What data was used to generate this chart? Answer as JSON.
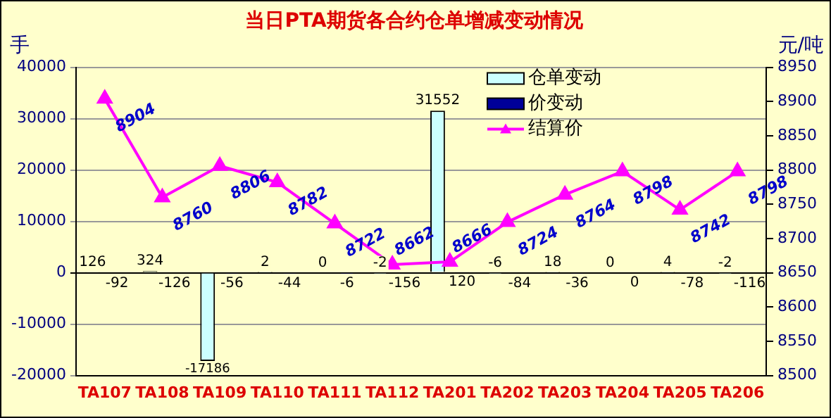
{
  "chart_data": {
    "type": "bar",
    "title": "当日PTA期货各合约仓单增减变动情况",
    "ylabel": "手",
    "y2label": "元/吨",
    "categories": [
      "TA107",
      "TA108",
      "TA109",
      "TA110",
      "TA111",
      "TA112",
      "TA201",
      "TA202",
      "TA203",
      "TA204",
      "TA205",
      "TA206"
    ],
    "series": [
      {
        "name": "仓单变动",
        "color": "#ccffff",
        "values": [
          126,
          324,
          -17186,
          2,
          0,
          -2,
          31552,
          -6,
          18,
          0,
          4,
          -2
        ]
      },
      {
        "name": "价变动",
        "color": "#000099",
        "values": [
          -92,
          -126,
          -56,
          -44,
          -6,
          -156,
          120,
          -84,
          -36,
          0,
          -78,
          -116
        ]
      },
      {
        "name": "结算价",
        "type": "line",
        "axis": "y2",
        "color": "#ff00ff",
        "values": [
          8904,
          8760,
          8806,
          8782,
          8722,
          8662,
          8666,
          8724,
          8764,
          8798,
          8742,
          8798
        ]
      }
    ],
    "ylim": [
      -20000,
      40000
    ],
    "yticks": [
      -20000,
      -10000,
      0,
      10000,
      20000,
      30000,
      40000
    ],
    "y2lim": [
      8500,
      8950
    ],
    "y2ticks": [
      8500,
      8550,
      8600,
      8650,
      8700,
      8750,
      8800,
      8850,
      8900,
      8950
    ],
    "grid": "y",
    "legend": "top right",
    "marker": "triangle",
    "line_style": "solid",
    "data_labels": true
  }
}
